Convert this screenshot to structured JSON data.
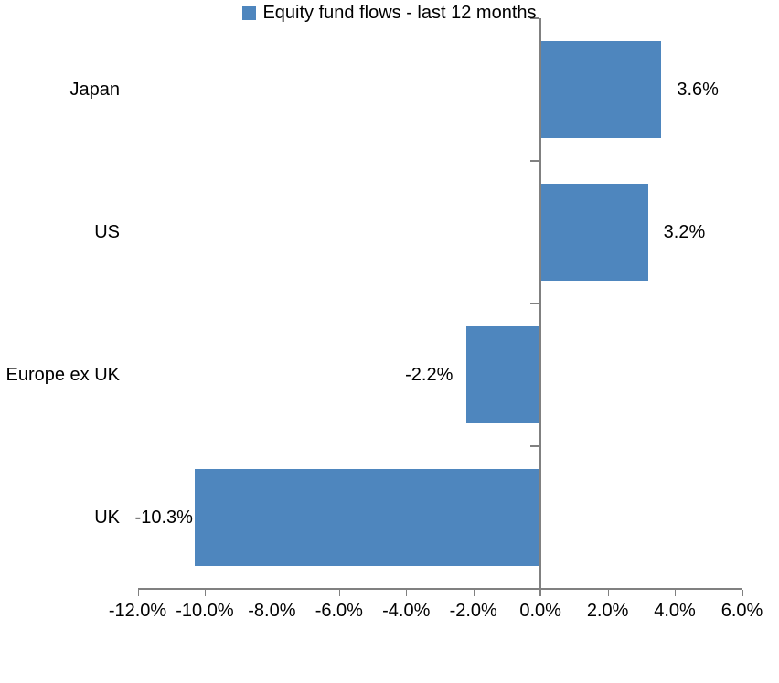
{
  "chart_data": {
    "type": "bar",
    "orientation": "horizontal",
    "title": "",
    "categories": [
      "Japan",
      "US",
      "Europe ex UK",
      "UK"
    ],
    "series": [
      {
        "name": "Equity fund flows - last 12 months",
        "values": [
          3.6,
          3.2,
          -2.2,
          -10.3
        ],
        "value_labels": [
          "3.6%",
          "3.2%",
          "-2.2%",
          "-10.3%"
        ]
      }
    ],
    "xlabel": "",
    "ylabel": "",
    "xlim": [
      -12,
      6
    ],
    "x_tick_step": 2,
    "x_tick_labels": [
      "-12.0%",
      "-10.0%",
      "-8.0%",
      "-6.0%",
      "-4.0%",
      "-2.0%",
      "0.0%",
      "2.0%",
      "4.0%",
      "6.0%"
    ],
    "grid": false,
    "legend": "Equity fund flows - last 12 months",
    "legend_position": "bottom-center",
    "bar_color": "#4E86BE",
    "axis_color": "#808080",
    "text_color": "#000000"
  }
}
